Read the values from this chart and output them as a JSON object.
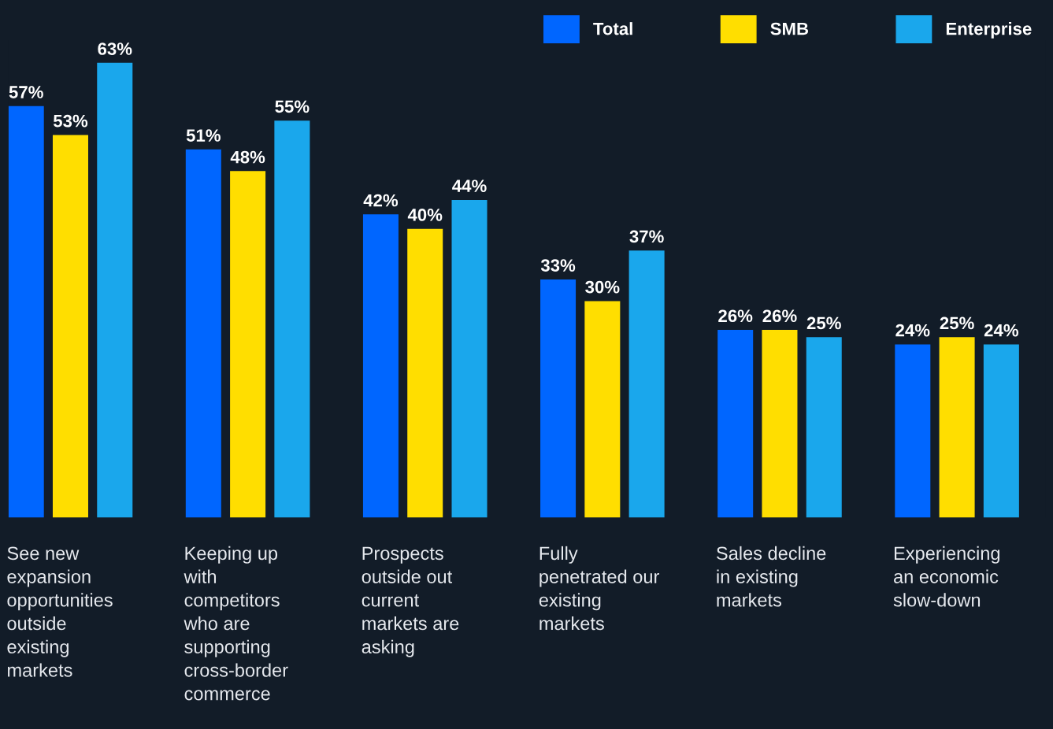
{
  "chart_data": {
    "type": "bar",
    "categories": [
      "See new expansion opportunities outside existing markets",
      "Keeping up with competitors who are supporting cross-border commerce",
      "Prospects outside out current markets are asking",
      "Fully penetrated our existing markets",
      "Sales decline in existing markets",
      "Experiencing an economic slow-down"
    ],
    "series": [
      {
        "name": "Total",
        "color": "#0066ff",
        "values": [
          57,
          51,
          42,
          33,
          26,
          24
        ],
        "value_labels": [
          "57%",
          "51%",
          "42%",
          "33%",
          "26%",
          "24%"
        ]
      },
      {
        "name": "SMB",
        "color": "#ffde00",
        "values": [
          53,
          48,
          40,
          30,
          26,
          25
        ],
        "value_labels": [
          "53%",
          "48%",
          "40%",
          "30%",
          "26%",
          "25%"
        ]
      },
      {
        "name": "Enterprise",
        "color": "#1aa7ec",
        "values": [
          63,
          55,
          44,
          37,
          25,
          24
        ],
        "value_labels": [
          "63%",
          "55%",
          "44%",
          "37%",
          "25%",
          "24%"
        ]
      }
    ],
    "legend": "top right"
  }
}
